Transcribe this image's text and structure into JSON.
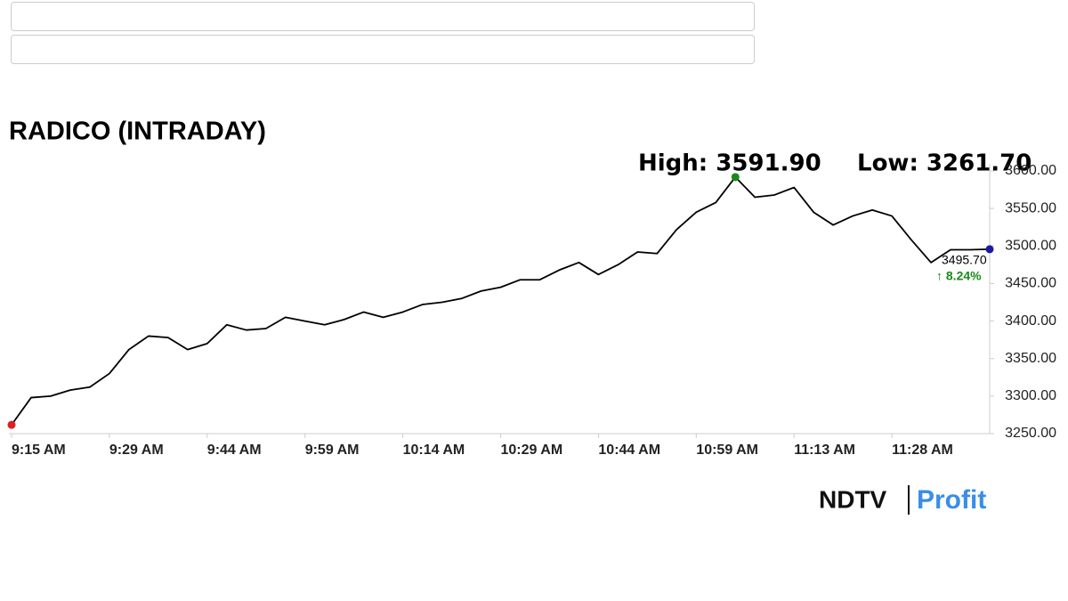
{
  "chart_data": {
    "type": "line",
    "title": "RADICO (INTRADAY)",
    "high_label": "High: 3591.90",
    "low_label": "Low: 3261.70",
    "last_label": "3495.70",
    "change_label": "↑ 8.24%",
    "categories": [
      "9:15 AM",
      null,
      null,
      null,
      null,
      "9:29 AM",
      null,
      null,
      null,
      null,
      "9:44 AM",
      null,
      null,
      null,
      null,
      "9:59 AM",
      null,
      null,
      null,
      null,
      "10:14 AM",
      null,
      null,
      null,
      null,
      "10:29 AM",
      null,
      null,
      null,
      null,
      "10:44 AM",
      null,
      null,
      null,
      null,
      "10:59 AM",
      null,
      null,
      null,
      null,
      "11:13 AM",
      null,
      null,
      null,
      null,
      "11:28 AM",
      null,
      null,
      null,
      null,
      null
    ],
    "series": [
      {
        "name": "RADICO",
        "color": "#000000",
        "values": [
          3261.7,
          3298,
          3300,
          3308,
          3312,
          3330,
          3362,
          3380,
          3378,
          3362,
          3370,
          3395,
          3388,
          3390,
          3405,
          3400,
          3395,
          3402,
          3412,
          3405,
          3412,
          3422,
          3425,
          3430,
          3440,
          3445,
          3455,
          3455,
          3468,
          3478,
          3462,
          3475,
          3492,
          3490,
          3522,
          3545,
          3558,
          3591.9,
          3565,
          3568,
          3578,
          3545,
          3528,
          3540,
          3548,
          3540,
          3508,
          3478,
          3495,
          3495,
          3495.7
        ]
      }
    ],
    "ylim": [
      3250,
      3600
    ],
    "yticks": [
      {
        "value": 3250,
        "label": "3250.00"
      },
      {
        "value": 3300,
        "label": "3300.00"
      },
      {
        "value": 3350,
        "label": "3350.00"
      },
      {
        "value": 3400,
        "label": "3400.00"
      },
      {
        "value": 3450,
        "label": "3450.00"
      },
      {
        "value": 3500,
        "label": "3500.00"
      },
      {
        "value": 3550,
        "label": "3550.00"
      },
      {
        "value": 3600,
        "label": "3600.00"
      }
    ],
    "high_color": "#1a8a1a",
    "low_color": "#e02020",
    "last_color": "#1a1aa8",
    "change_color": "#1a8a1a",
    "brand": "NDTV",
    "brand_sub": "Profit"
  }
}
